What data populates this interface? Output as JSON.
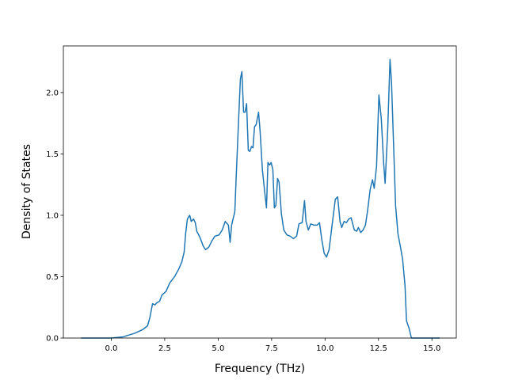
{
  "chart_data": {
    "type": "line",
    "x_label": "Frequency (THz)",
    "y_label": "Density of States",
    "x": [
      -1.41,
      0,
      0.56,
      1.11,
      1.48,
      1.7,
      1.81,
      1.93,
      2.04,
      2.15,
      2.26,
      2.37,
      2.56,
      2.74,
      2.96,
      3.15,
      3.3,
      3.41,
      3.48,
      3.56,
      3.67,
      3.74,
      3.85,
      3.93,
      4.0,
      4.15,
      4.3,
      4.41,
      4.56,
      4.7,
      4.85,
      5.04,
      5.19,
      5.33,
      5.48,
      5.56,
      5.63,
      5.78,
      5.85,
      5.96,
      6.04,
      6.11,
      6.19,
      6.26,
      6.33,
      6.41,
      6.48,
      6.56,
      6.63,
      6.7,
      6.78,
      6.89,
      6.96,
      7.07,
      7.19,
      7.26,
      7.33,
      7.41,
      7.48,
      7.56,
      7.63,
      7.7,
      7.78,
      7.85,
      7.96,
      8.07,
      8.22,
      8.37,
      8.52,
      8.67,
      8.78,
      8.93,
      9.04,
      9.11,
      9.22,
      9.33,
      9.48,
      9.63,
      9.74,
      9.85,
      9.96,
      10.07,
      10.19,
      10.33,
      10.48,
      10.59,
      10.7,
      10.78,
      10.89,
      11.0,
      11.11,
      11.22,
      11.37,
      11.48,
      11.56,
      11.67,
      11.78,
      11.89,
      12.0,
      12.11,
      12.22,
      12.3,
      12.41,
      12.52,
      12.63,
      12.74,
      12.81,
      12.93,
      13.04,
      13.11,
      13.19,
      13.3,
      13.41,
      13.52,
      13.63,
      13.74,
      13.81,
      13.93,
      14.04,
      15.37
    ],
    "series": [
      {
        "color": "#1f77b4",
        "values": [
          0,
          0,
          0.01,
          0.04,
          0.07,
          0.1,
          0.17,
          0.28,
          0.27,
          0.29,
          0.3,
          0.35,
          0.38,
          0.45,
          0.5,
          0.56,
          0.62,
          0.7,
          0.85,
          0.97,
          1.0,
          0.95,
          0.97,
          0.94,
          0.87,
          0.82,
          0.75,
          0.72,
          0.74,
          0.79,
          0.83,
          0.84,
          0.88,
          0.95,
          0.92,
          0.78,
          0.92,
          1.03,
          1.34,
          1.79,
          2.11,
          2.17,
          1.84,
          1.84,
          1.91,
          1.53,
          1.52,
          1.56,
          1.55,
          1.72,
          1.74,
          1.84,
          1.69,
          1.37,
          1.17,
          1.06,
          1.43,
          1.41,
          1.43,
          1.37,
          1.06,
          1.08,
          1.3,
          1.27,
          1.01,
          0.88,
          0.84,
          0.83,
          0.81,
          0.83,
          0.93,
          0.94,
          1.12,
          0.95,
          0.88,
          0.93,
          0.92,
          0.92,
          0.94,
          0.8,
          0.69,
          0.66,
          0.72,
          0.92,
          1.13,
          1.15,
          0.95,
          0.9,
          0.95,
          0.94,
          0.97,
          0.98,
          0.88,
          0.87,
          0.9,
          0.86,
          0.88,
          0.92,
          1.05,
          1.21,
          1.29,
          1.22,
          1.4,
          1.98,
          1.79,
          1.43,
          1.26,
          1.69,
          2.27,
          2.08,
          1.66,
          1.08,
          0.85,
          0.75,
          0.64,
          0.43,
          0.14,
          0.08,
          0,
          0
        ]
      }
    ],
    "xlim": [
      -2.24,
      16.14
    ],
    "ylim": [
      0,
      2.38
    ],
    "xticks": [
      {
        "value": 0,
        "label": "0.0"
      },
      2.5,
      {
        "value": 5,
        "label": "5.0"
      },
      7.5,
      {
        "value": 10,
        "label": "10.0"
      },
      12.5,
      {
        "value": 15,
        "label": "15.0"
      }
    ],
    "yticks": [
      {
        "value": 0,
        "label": "0.0"
      },
      0.5,
      {
        "value": 1,
        "label": "1.0"
      },
      1.5,
      {
        "value": 2,
        "label": "2.0"
      }
    ]
  }
}
